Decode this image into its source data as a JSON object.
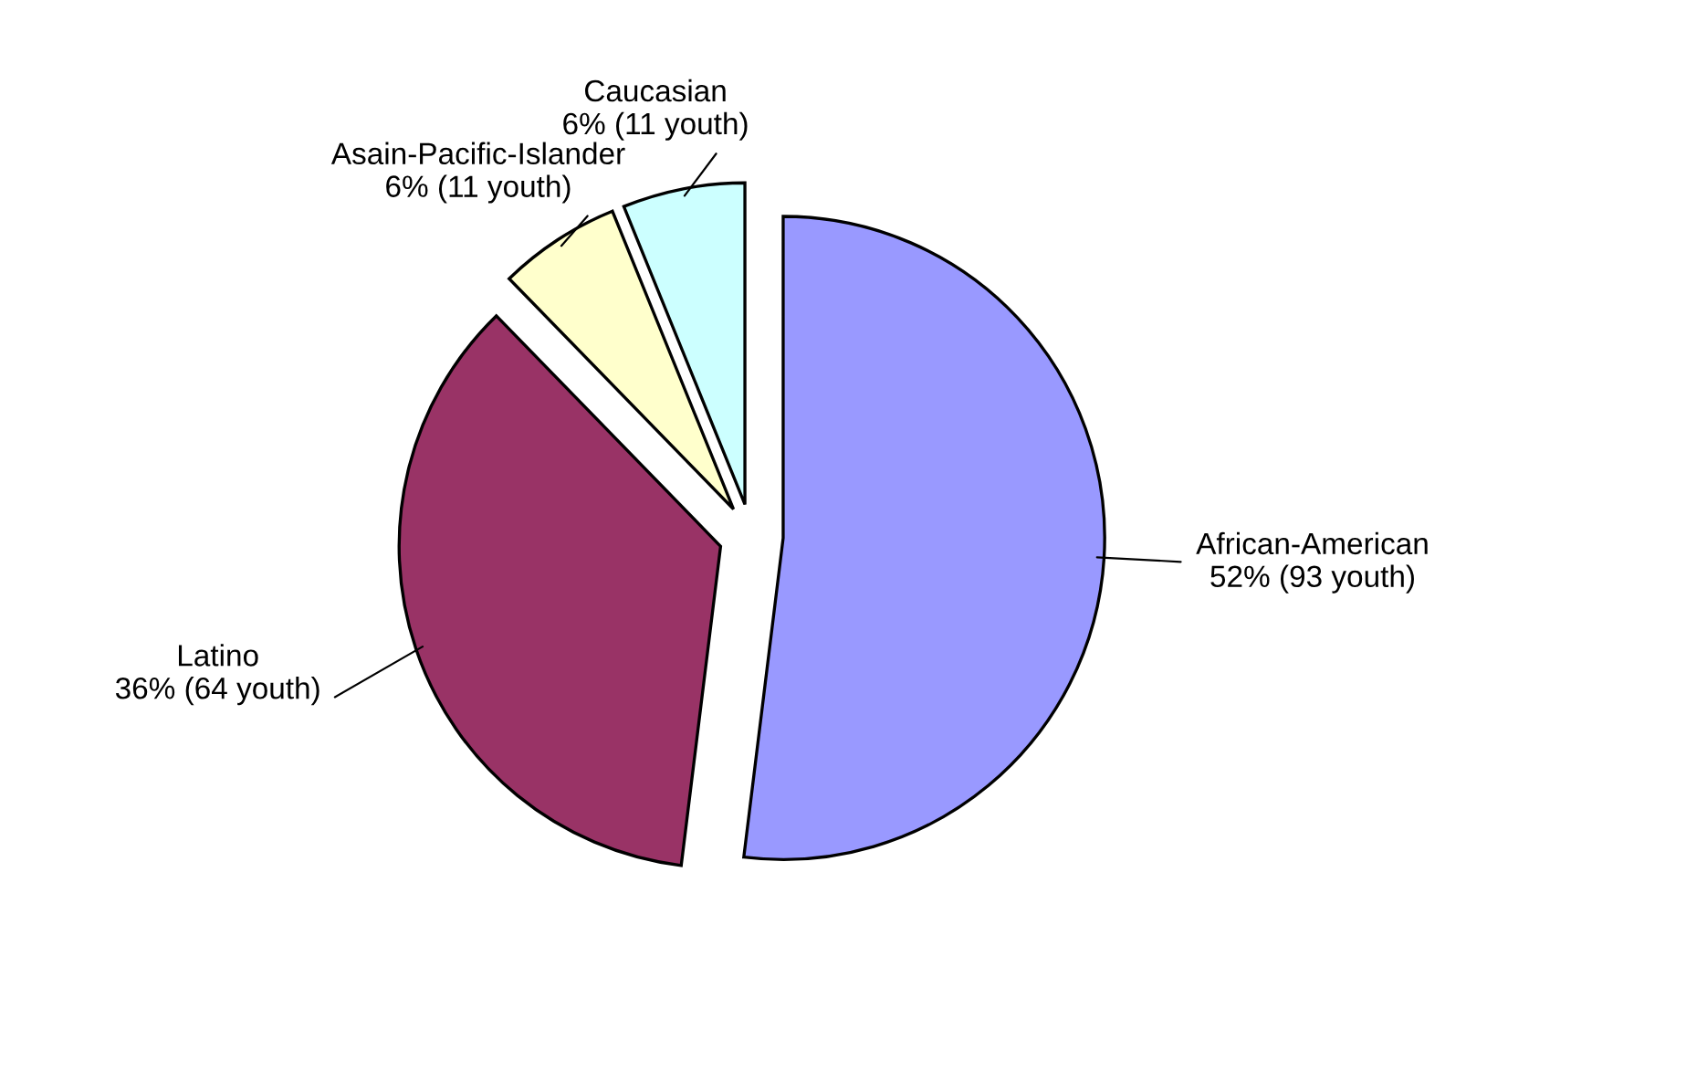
{
  "chart_data": {
    "type": "pie",
    "categories": [
      "African-American",
      "Latino",
      "Asain-Pacific-Islander",
      "Caucasian"
    ],
    "values": [
      93,
      64,
      11,
      11
    ],
    "colors": [
      "#9999ff",
      "#993366",
      "#ffffcc",
      "#ccffff"
    ],
    "value_labels": [
      "52% (93 youth)",
      "36% (64 youth)",
      "6% (11 youth)",
      "6% (11 youth)"
    ]
  }
}
